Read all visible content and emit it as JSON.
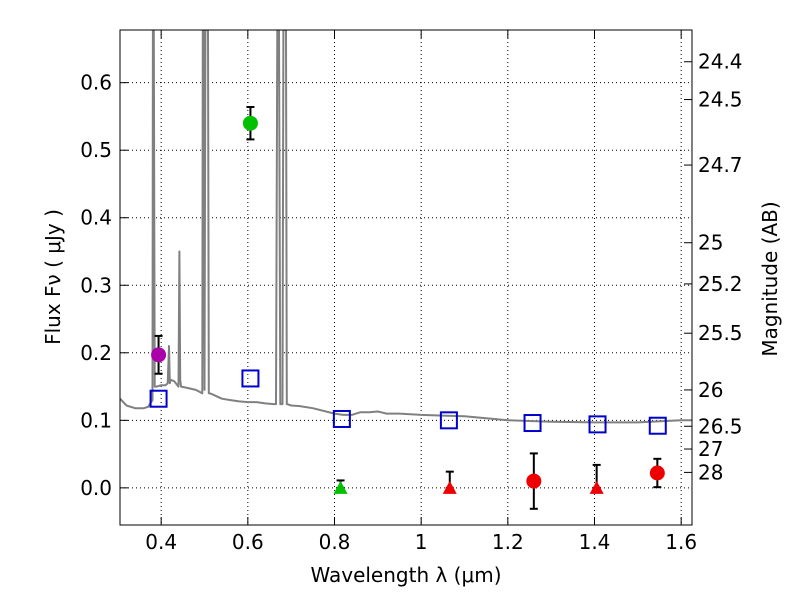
{
  "chart_data": {
    "type": "scatter",
    "xlabel": "Wavelength  λ (μm)",
    "ylabel": "Flux  Fν  ( μJy )",
    "y2label": "Magnitude (AB)",
    "xlim": [
      0.305,
      1.625
    ],
    "ylim": [
      -0.055,
      0.678
    ],
    "grid": true,
    "x_ticks": [
      "0.4",
      "0.6",
      "0.8",
      "1",
      "1.2",
      "1.4",
      "1.6"
    ],
    "x_tick_values": [
      0.4,
      0.6,
      0.8,
      1.0,
      1.2,
      1.4,
      1.6
    ],
    "y_ticks": [
      "0.0",
      "0.1",
      "0.2",
      "0.3",
      "0.4",
      "0.5",
      "0.6"
    ],
    "y_tick_values": [
      0.0,
      0.1,
      0.2,
      0.3,
      0.4,
      0.5,
      0.6
    ],
    "magnitude_ticks": [
      {
        "label": "24.4",
        "flux": 0.631
      },
      {
        "label": "24.5",
        "flux": 0.575
      },
      {
        "label": "24.7",
        "flux": 0.478
      },
      {
        "label": "25",
        "flux": 0.363
      },
      {
        "label": "25.2",
        "flux": 0.302
      },
      {
        "label": "25.5",
        "flux": 0.229
      },
      {
        "label": "26",
        "flux": 0.145
      },
      {
        "label": "26.5",
        "flux": 0.0912
      },
      {
        "label": "27",
        "flux": 0.0575
      },
      {
        "label": "28",
        "flux": 0.0229
      }
    ],
    "colors": {
      "model": "#808080",
      "model_points": "#0000cc",
      "purple": "#aa00aa",
      "green": "#00c000",
      "red": "#ee0000",
      "errorbar": "#000000"
    },
    "series": [
      {
        "name": "model SED",
        "kind": "line",
        "x": [
          0.305,
          0.32,
          0.34,
          0.36,
          0.37,
          0.375,
          0.38,
          0.381,
          0.382,
          0.383,
          0.385,
          0.39,
          0.4,
          0.41,
          0.415,
          0.418,
          0.42,
          0.422,
          0.43,
          0.44,
          0.442,
          0.444,
          0.446,
          0.46,
          0.48,
          0.495,
          0.496,
          0.498,
          0.5,
          0.502,
          0.504,
          0.506,
          0.508,
          0.51,
          0.512,
          0.52,
          0.54,
          0.56,
          0.58,
          0.6,
          0.62,
          0.64,
          0.66,
          0.665,
          0.668,
          0.67,
          0.672,
          0.675,
          0.68,
          0.682,
          0.685,
          0.688,
          0.69,
          0.7,
          0.72,
          0.75,
          0.8,
          0.82,
          0.84,
          0.86,
          0.88,
          0.9,
          0.92,
          0.95,
          1.0,
          1.05,
          1.1,
          1.2,
          1.3,
          1.4,
          1.5,
          1.6,
          1.625
        ],
        "y": [
          0.132,
          0.122,
          0.118,
          0.118,
          0.12,
          0.125,
          0.13,
          0.678,
          0.678,
          0.678,
          0.15,
          0.15,
          0.152,
          0.152,
          0.155,
          0.21,
          0.155,
          0.16,
          0.158,
          0.15,
          0.35,
          0.16,
          0.15,
          0.148,
          0.145,
          0.14,
          0.678,
          0.678,
          0.145,
          0.678,
          0.678,
          0.678,
          0.678,
          0.14,
          0.14,
          0.138,
          0.132,
          0.13,
          0.128,
          0.127,
          0.127,
          0.125,
          0.124,
          0.124,
          0.678,
          0.678,
          0.678,
          0.124,
          0.124,
          0.678,
          0.678,
          0.678,
          0.124,
          0.122,
          0.121,
          0.118,
          0.11,
          0.108,
          0.108,
          0.112,
          0.112,
          0.113,
          0.11,
          0.11,
          0.108,
          0.107,
          0.106,
          0.1,
          0.098,
          0.097,
          0.097,
          0.1,
          0.1
        ]
      },
      {
        "name": "model photometry",
        "kind": "open-square",
        "x": [
          0.394,
          0.606,
          0.817,
          1.064,
          1.257,
          1.407,
          1.546
        ],
        "y": [
          0.132,
          0.162,
          0.102,
          0.1,
          0.096,
          0.094,
          0.092
        ]
      },
      {
        "name": "detection blue",
        "kind": "circle",
        "color": "purple",
        "x": [
          0.394
        ],
        "y": [
          0.197
        ],
        "yerr": [
          0.028
        ]
      },
      {
        "name": "detection green",
        "kind": "circle",
        "color": "green",
        "x": [
          0.606
        ],
        "y": [
          0.54
        ],
        "yerr": [
          0.024
        ]
      },
      {
        "name": "upper limit green",
        "kind": "triangle",
        "color": "green",
        "x": [
          0.814
        ],
        "y": [
          0.0
        ],
        "yerr_up": [
          0.011
        ]
      },
      {
        "name": "upper limits red",
        "kind": "triangle",
        "color": "red",
        "x": [
          1.066,
          1.405
        ],
        "y": [
          0.0,
          0.0
        ],
        "yerr_up": [
          0.024,
          0.034
        ]
      },
      {
        "name": "detections red",
        "kind": "circle",
        "color": "red",
        "x": [
          1.26,
          1.545
        ],
        "y": [
          0.01,
          0.022
        ],
        "yerr": [
          0.041,
          0.021
        ]
      }
    ]
  }
}
